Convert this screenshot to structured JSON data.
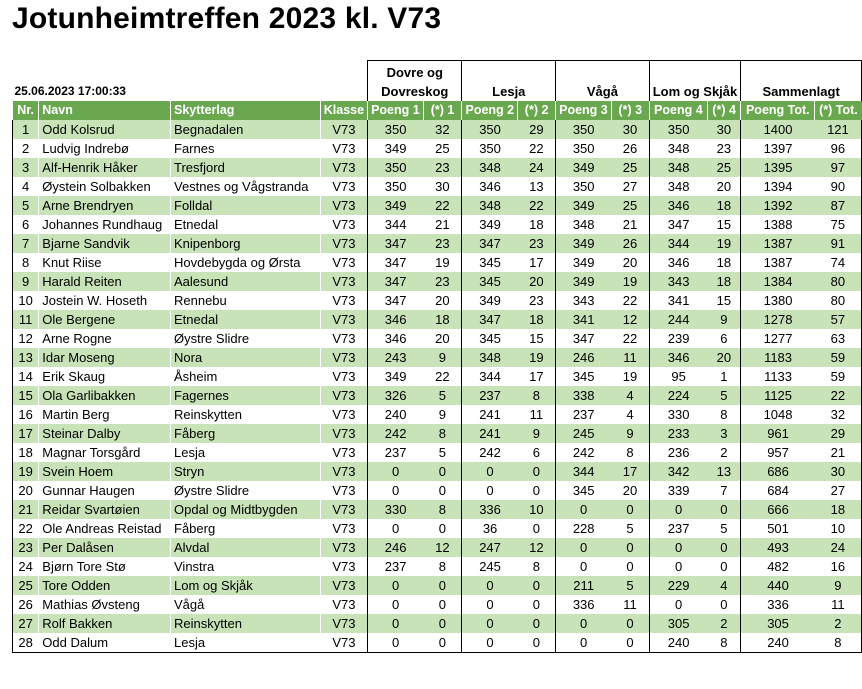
{
  "title": "Jotunheimtreffen 2023 kl. V73",
  "timestamp": "25.06.2023 17:00:33",
  "groups": {
    "dovre": [
      "Dovre og",
      "Dovreskog"
    ],
    "lesja": "Lesja",
    "vaga": "Vågå",
    "lom": "Lom og Skjåk",
    "sum": "Sammenlagt"
  },
  "headers": [
    "Nr.",
    "Navn",
    "Skytterlag",
    "Klasse",
    "Poeng 1",
    "(*) 1",
    "Poeng 2",
    "(*) 2",
    "Poeng 3",
    "(*) 3",
    "Poeng 4",
    "(*) 4",
    "Poeng Tot.",
    "(*) Tot."
  ],
  "rows": [
    [
      "1",
      "Odd Kolsrud",
      "Begnadalen",
      "V73",
      "350",
      "32",
      "350",
      "29",
      "350",
      "30",
      "350",
      "30",
      "1400",
      "121"
    ],
    [
      "2",
      "Ludvig Indrebø",
      "Farnes",
      "V73",
      "349",
      "25",
      "350",
      "22",
      "350",
      "26",
      "348",
      "23",
      "1397",
      "96"
    ],
    [
      "3",
      "Alf-Henrik Håker",
      "Tresfjord",
      "V73",
      "350",
      "23",
      "348",
      "24",
      "349",
      "25",
      "348",
      "25",
      "1395",
      "97"
    ],
    [
      "4",
      "Øystein Solbakken",
      "Vestnes og Vågstranda",
      "V73",
      "350",
      "30",
      "346",
      "13",
      "350",
      "27",
      "348",
      "20",
      "1394",
      "90"
    ],
    [
      "5",
      "Arne Brendryen",
      "Folldal",
      "V73",
      "349",
      "22",
      "348",
      "22",
      "349",
      "25",
      "346",
      "18",
      "1392",
      "87"
    ],
    [
      "6",
      "Johannes Rundhaug",
      "Etnedal",
      "V73",
      "344",
      "21",
      "349",
      "18",
      "348",
      "21",
      "347",
      "15",
      "1388",
      "75"
    ],
    [
      "7",
      "Bjarne Sandvik",
      "Knipenborg",
      "V73",
      "347",
      "23",
      "347",
      "23",
      "349",
      "26",
      "344",
      "19",
      "1387",
      "91"
    ],
    [
      "8",
      "Knut Riise",
      "Hovdebygda og Ørsta",
      "V73",
      "347",
      "19",
      "345",
      "17",
      "349",
      "20",
      "346",
      "18",
      "1387",
      "74"
    ],
    [
      "9",
      "Harald Reiten",
      "Aalesund",
      "V73",
      "347",
      "23",
      "345",
      "20",
      "349",
      "19",
      "343",
      "18",
      "1384",
      "80"
    ],
    [
      "10",
      "Jostein W. Hoseth",
      "Rennebu",
      "V73",
      "347",
      "20",
      "349",
      "23",
      "343",
      "22",
      "341",
      "15",
      "1380",
      "80"
    ],
    [
      "11",
      "Ole Bergene",
      "Etnedal",
      "V73",
      "346",
      "18",
      "347",
      "18",
      "341",
      "12",
      "244",
      "9",
      "1278",
      "57"
    ],
    [
      "12",
      "Arne Rogne",
      "Øystre Slidre",
      "V73",
      "346",
      "20",
      "345",
      "15",
      "347",
      "22",
      "239",
      "6",
      "1277",
      "63"
    ],
    [
      "13",
      "Idar Moseng",
      "Nora",
      "V73",
      "243",
      "9",
      "348",
      "19",
      "246",
      "11",
      "346",
      "20",
      "1183",
      "59"
    ],
    [
      "14",
      "Erik Skaug",
      "Åsheim",
      "V73",
      "349",
      "22",
      "344",
      "17",
      "345",
      "19",
      "95",
      "1",
      "1133",
      "59"
    ],
    [
      "15",
      "Ola Garlibakken",
      "Fagernes",
      "V73",
      "326",
      "5",
      "237",
      "8",
      "338",
      "4",
      "224",
      "5",
      "1125",
      "22"
    ],
    [
      "16",
      "Martin Berg",
      "Reinskytten",
      "V73",
      "240",
      "9",
      "241",
      "11",
      "237",
      "4",
      "330",
      "8",
      "1048",
      "32"
    ],
    [
      "17",
      "Steinar Dalby",
      "Fåberg",
      "V73",
      "242",
      "8",
      "241",
      "9",
      "245",
      "9",
      "233",
      "3",
      "961",
      "29"
    ],
    [
      "18",
      "Magnar Torsgård",
      "Lesja",
      "V73",
      "237",
      "5",
      "242",
      "6",
      "242",
      "8",
      "236",
      "2",
      "957",
      "21"
    ],
    [
      "19",
      "Svein Hoem",
      "Stryn",
      "V73",
      "0",
      "0",
      "0",
      "0",
      "344",
      "17",
      "342",
      "13",
      "686",
      "30"
    ],
    [
      "20",
      "Gunnar Haugen",
      "Øystre Slidre",
      "V73",
      "0",
      "0",
      "0",
      "0",
      "345",
      "20",
      "339",
      "7",
      "684",
      "27"
    ],
    [
      "21",
      "Reidar Svartøien",
      "Opdal og Midtbygden",
      "V73",
      "330",
      "8",
      "336",
      "10",
      "0",
      "0",
      "0",
      "0",
      "666",
      "18"
    ],
    [
      "22",
      "Ole Andreas Reistad",
      "Fåberg",
      "V73",
      "0",
      "0",
      "36",
      "0",
      "228",
      "5",
      "237",
      "5",
      "501",
      "10"
    ],
    [
      "23",
      "Per Dalåsen",
      "Alvdal",
      "V73",
      "246",
      "12",
      "247",
      "12",
      "0",
      "0",
      "0",
      "0",
      "493",
      "24"
    ],
    [
      "24",
      "Bjørn Tore Stø",
      "Vinstra",
      "V73",
      "237",
      "8",
      "245",
      "8",
      "0",
      "0",
      "0",
      "0",
      "482",
      "16"
    ],
    [
      "25",
      "Tore Odden",
      "Lom og Skjåk",
      "V73",
      "0",
      "0",
      "0",
      "0",
      "211",
      "5",
      "229",
      "4",
      "440",
      "9"
    ],
    [
      "26",
      "Mathias Øvsteng",
      "Vågå",
      "V73",
      "0",
      "0",
      "0",
      "0",
      "336",
      "11",
      "0",
      "0",
      "336",
      "11"
    ],
    [
      "27",
      "Rolf Bakken",
      "Reinskytten",
      "V73",
      "0",
      "0",
      "0",
      "0",
      "0",
      "0",
      "305",
      "2",
      "305",
      "2"
    ],
    [
      "28",
      "Odd Dalum",
      "Lesja",
      "V73",
      "0",
      "0",
      "0",
      "0",
      "0",
      "0",
      "240",
      "8",
      "240",
      "8"
    ]
  ],
  "colors": {
    "header_green": "#6aa84f",
    "row_green": "#c9e3b8"
  }
}
